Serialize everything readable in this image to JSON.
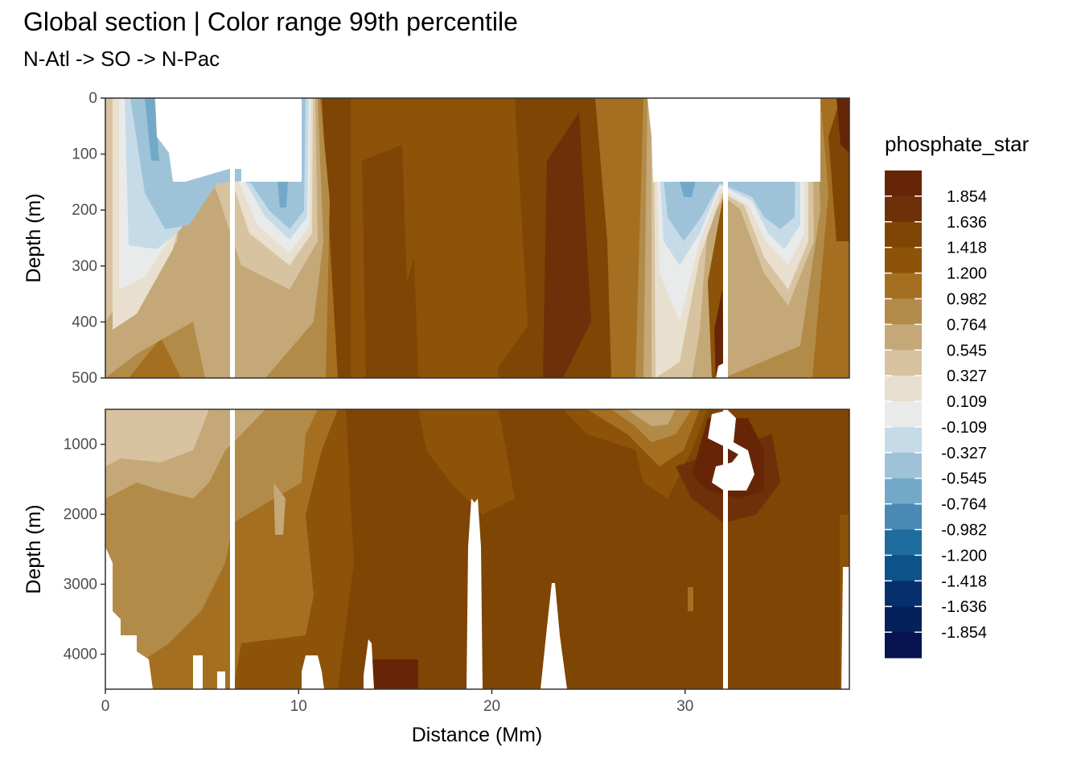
{
  "chart_data": {
    "type": "heatmap",
    "title": "Global section | Color range 99th percentile",
    "subtitle": "N-Atl -> SO -> N-Pac",
    "xlabel": "Distance (Mm)",
    "ylabel": "Depth (m)",
    "xlim": [
      0,
      38.5
    ],
    "x_ticks": [
      "0",
      "10",
      "20",
      "30"
    ],
    "panels": [
      {
        "name": "upper",
        "ylim": [
          0,
          500
        ],
        "y_ticks": [
          "0",
          "100",
          "200",
          "300",
          "400",
          "500"
        ]
      },
      {
        "name": "lower",
        "ylim": [
          500,
          4500
        ],
        "y_ticks": [
          "1000",
          "2000",
          "3000",
          "4000"
        ]
      }
    ],
    "legend": {
      "title": "phosphate_star",
      "placement": "right",
      "labels": [
        "1.854",
        "1.636",
        "1.418",
        "1.200",
        "0.982",
        "0.764",
        "0.545",
        "0.327",
        "0.109",
        "-0.109",
        "-0.327",
        "-0.545",
        "-0.764",
        "-0.982",
        "-1.200",
        "-1.418",
        "-1.636",
        "-1.854"
      ],
      "colors": [
        "#662506",
        "#6d3008",
        "#7f4504",
        "#8c5309",
        "#a46f20",
        "#b38b48",
        "#c4a878",
        "#d8c3a0",
        "#e8dfcf",
        "#e8ebea",
        "#c6dbe8",
        "#9ec3d9",
        "#72a9c9",
        "#4989b3",
        "#1f6c9e",
        "#0d5289",
        "#05306d",
        "#06205c",
        "#081450"
      ]
    },
    "grid": true
  }
}
